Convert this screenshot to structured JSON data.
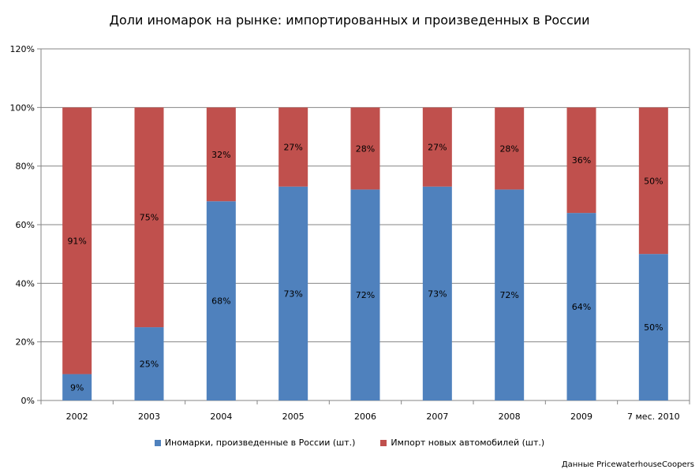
{
  "chart_data": {
    "type": "bar",
    "stacked": true,
    "title": "Доли иномарок на рынке: импортированных и произведенных в России",
    "xlabel": "",
    "ylabel": "",
    "ylim": [
      0,
      120
    ],
    "yticks": [
      "0%",
      "20%",
      "40%",
      "60%",
      "80%",
      "100%",
      "120%"
    ],
    "grid": true,
    "legend_position": "bottom",
    "categories": [
      "2002",
      "2003",
      "2004",
      "2005",
      "2006",
      "2007",
      "2008",
      "2009",
      "7 мес. 2010"
    ],
    "series": [
      {
        "name": "Иномарки, произведенные в России (шт.)",
        "color": "#4F81BD",
        "values": [
          9,
          25,
          68,
          73,
          72,
          73,
          72,
          64,
          50
        ],
        "labels": [
          "9%",
          "25%",
          "68%",
          "73%",
          "72%",
          "73%",
          "72%",
          "64%",
          "50%"
        ]
      },
      {
        "name": "Импорт новых автомобилей (шт.)",
        "color": "#C0504D",
        "values": [
          91,
          75,
          32,
          27,
          28,
          27,
          28,
          36,
          50
        ],
        "labels": [
          "91%",
          "75%",
          "32%",
          "27%",
          "28%",
          "27%",
          "28%",
          "36%",
          "50%"
        ]
      }
    ]
  },
  "source_note": "Данные PricewaterhouseCoopers"
}
